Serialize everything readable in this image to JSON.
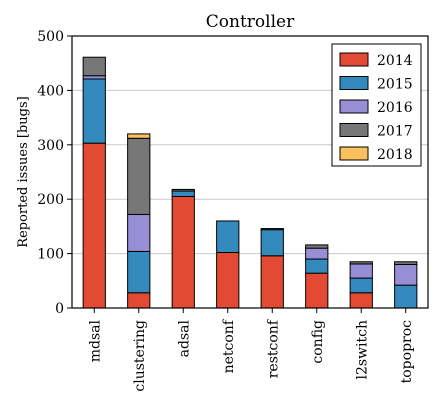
{
  "chart_data": {
    "type": "bar",
    "stacked": true,
    "title": "Controller",
    "xlabel": "",
    "ylabel": "Reported issues [bugs]",
    "ylim": [
      0,
      500
    ],
    "yticks": [
      0,
      100,
      200,
      300,
      400,
      500
    ],
    "grid": "horizontal",
    "legend_position": "top-right",
    "categories": [
      "mdsal",
      "clustering",
      "adsal",
      "netconf",
      "restconf",
      "config",
      "l2switch",
      "topoproc"
    ],
    "series": [
      {
        "name": "2014",
        "color": "#e24a33",
        "values": [
          303,
          28,
          205,
          102,
          96,
          64,
          28,
          0
        ]
      },
      {
        "name": "2015",
        "color": "#348abd",
        "values": [
          118,
          76,
          10,
          58,
          48,
          26,
          27,
          42
        ]
      },
      {
        "name": "2016",
        "color": "#988ed5",
        "values": [
          6,
          68,
          0,
          0,
          0,
          20,
          26,
          38
        ]
      },
      {
        "name": "2017",
        "color": "#777777",
        "values": [
          34,
          140,
          3,
          0,
          2,
          6,
          4,
          5
        ]
      },
      {
        "name": "2018",
        "color": "#fbc15e",
        "values": [
          0,
          8,
          0,
          0,
          0,
          0,
          0,
          0
        ]
      }
    ]
  }
}
